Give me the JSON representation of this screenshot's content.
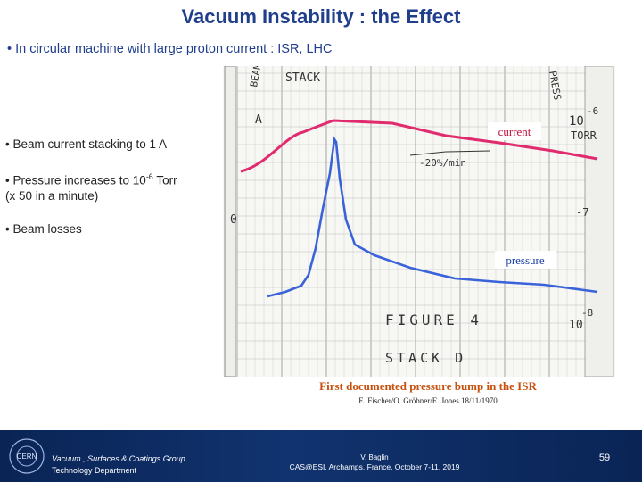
{
  "slide": {
    "title": "Vacuum Instability : the Effect",
    "bullets": [
      {
        "text": "• In circular machine with large proton current : ISR, LHC"
      },
      {
        "text": "• Beam current stacking to 1 A"
      },
      {
        "text_pre": "• Pressure increases to 10",
        "sup": "-6",
        "text_post": " Torr",
        "line2": "(x 50 in a minute)"
      },
      {
        "text": "• Beam losses"
      }
    ],
    "caption": "First documented pressure bump in the ISR",
    "credit": "E. Fischer/O. Gröbner/E. Jones  18/11/1970"
  },
  "chart_labels": {
    "current": "current",
    "pressure": "pressure",
    "handwritten": [
      "STACK",
      "BEAM",
      "PRESS",
      "A",
      "10",
      "-6",
      "TORR",
      "-20%/min",
      "0",
      "-7",
      "FIGURE 4",
      "STACK D",
      "10",
      "-8"
    ]
  },
  "colors": {
    "title": "#1f3e8c",
    "current_line": "#e02c6e",
    "pressure_line": "#3b63d9",
    "caption": "#c8500f",
    "footer_bg": "#0d2a5e"
  },
  "footer": {
    "group": "Vacuum , Surfaces & Coatings Group",
    "department": "Technology Department",
    "author": "V. Baglin",
    "event": "CAS@ESI, Archamps, France, October 7-11, 2019",
    "page": "59",
    "logo_text": "CERN"
  }
}
